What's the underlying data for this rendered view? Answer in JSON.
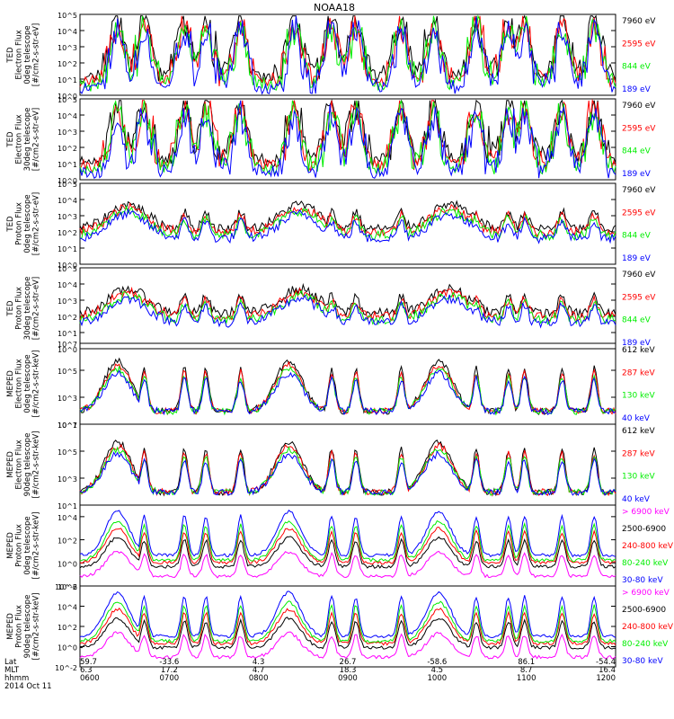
{
  "title": "NOAA18",
  "date": "2014 Oct 11",
  "colors": {
    "black": "#000000",
    "red": "#ff0000",
    "green": "#00ee00",
    "blue": "#0000ff",
    "magenta": "#ff00ff"
  },
  "footer": {
    "row_labels": [
      "Lat",
      "MLT",
      "hhmm"
    ],
    "columns": [
      {
        "lat": "59.7",
        "mlt": "6.3",
        "hhmm": "0600"
      },
      {
        "lat": "-33.6",
        "mlt": "17.2",
        "hhmm": "0700"
      },
      {
        "lat": "4.3",
        "mlt": "4.7",
        "hhmm": "0800"
      },
      {
        "lat": "26.7",
        "mlt": "18.3",
        "hhmm": "0900"
      },
      {
        "lat": "-58.6",
        "mlt": "4.5",
        "hhmm": "1000"
      },
      {
        "lat": "86.1",
        "mlt": "8.7",
        "hhmm": "1100"
      },
      {
        "lat": "-54.4",
        "mlt": "16.4",
        "hhmm": "1200"
      }
    ]
  },
  "chart_data": [
    {
      "type": "line",
      "instrument": "TED",
      "ylabel": [
        "TED",
        "Electron Flux",
        "0deg telescope",
        "[#/cm2-s-str-eV]"
      ],
      "ylim_exp": [
        0,
        5
      ],
      "yticks": [
        "10^0",
        "10^1",
        "10^2",
        "10^3",
        "10^4",
        "10^5"
      ],
      "xlim": [
        "0600",
        "1200"
      ],
      "legend": [
        {
          "label": "7960 eV",
          "color": "black"
        },
        {
          "label": "2595 eV",
          "color": "red"
        },
        {
          "label": "844 eV",
          "color": "green"
        },
        {
          "label": "189 eV",
          "color": "blue"
        }
      ],
      "series": [
        {
          "name": "7960 eV",
          "color": "black"
        },
        {
          "name": "2595 eV",
          "color": "red"
        },
        {
          "name": "844 eV",
          "color": "green"
        },
        {
          "name": "189 eV",
          "color": "blue"
        }
      ]
    },
    {
      "type": "line",
      "instrument": "TED",
      "ylabel": [
        "TED",
        "Electron Flux",
        "30deg telescope",
        "[#/cm2-s-str-eV]"
      ],
      "ylim_exp": [
        0,
        5
      ],
      "yticks": [
        "10^0",
        "10^1",
        "10^2",
        "10^3",
        "10^4",
        "10^5"
      ],
      "xlim": [
        "0600",
        "1200"
      ],
      "legend": [
        {
          "label": "7960 eV",
          "color": "black"
        },
        {
          "label": "2595 eV",
          "color": "red"
        },
        {
          "label": "844 eV",
          "color": "green"
        },
        {
          "label": "189 eV",
          "color": "blue"
        }
      ],
      "series": [
        {
          "name": "7960 eV",
          "color": "black"
        },
        {
          "name": "2595 eV",
          "color": "red"
        },
        {
          "name": "844 eV",
          "color": "green"
        },
        {
          "name": "189 eV",
          "color": "blue"
        }
      ]
    },
    {
      "type": "line",
      "instrument": "TED",
      "ylabel": [
        "TED",
        "Proton Flux",
        "0deg telescope",
        "[#/cm2-s-str-eV]"
      ],
      "ylim_exp": [
        0,
        5
      ],
      "yticks": [
        "10^0",
        "10^1",
        "10^2",
        "10^3",
        "10^4",
        "10^5"
      ],
      "xlim": [
        "0600",
        "1200"
      ],
      "legend": [
        {
          "label": "7960 eV",
          "color": "black"
        },
        {
          "label": "2595 eV",
          "color": "red"
        },
        {
          "label": "844 eV",
          "color": "green"
        },
        {
          "label": "189 eV",
          "color": "blue"
        }
      ],
      "series": [
        {
          "name": "7960 eV",
          "color": "black"
        },
        {
          "name": "2595 eV",
          "color": "red"
        },
        {
          "name": "844 eV",
          "color": "green"
        },
        {
          "name": "189 eV",
          "color": "blue"
        }
      ]
    },
    {
      "type": "line",
      "instrument": "TED",
      "ylabel": [
        "TED",
        "Proton Flux",
        "30deg telescope",
        "[#/cm2-s-str-eV]"
      ],
      "ylim_exp": [
        0,
        5
      ],
      "yticks": [
        "10^0",
        "10^1",
        "10^2",
        "10^3",
        "10^4",
        "10^5"
      ],
      "xlim": [
        "0600",
        "1200"
      ],
      "legend": [
        {
          "label": "7960 eV",
          "color": "black"
        },
        {
          "label": "2595 eV",
          "color": "red"
        },
        {
          "label": "844 eV",
          "color": "green"
        },
        {
          "label": "189 eV",
          "color": "blue"
        }
      ],
      "series": [
        {
          "name": "7960 eV",
          "color": "black"
        },
        {
          "name": "2595 eV",
          "color": "red"
        },
        {
          "name": "844 eV",
          "color": "green"
        },
        {
          "name": "189 eV",
          "color": "blue"
        }
      ]
    },
    {
      "type": "line",
      "instrument": "MEPED",
      "ylabel": [
        "MEPED",
        "Electron Flux",
        "0deg telescope",
        "[#/cm2-s-str-keV]"
      ],
      "ylim_exp": [
        1,
        7
      ],
      "yticks": [
        "10^1",
        "10^3",
        "10^5",
        "10^7"
      ],
      "xlim": [
        "0600",
        "1200"
      ],
      "legend": [
        {
          "label": "612 keV",
          "color": "black"
        },
        {
          "label": "287 keV",
          "color": "red"
        },
        {
          "label": "130 keV",
          "color": "green"
        },
        {
          "label": "40 keV",
          "color": "blue"
        }
      ],
      "series": [
        {
          "name": "612 keV",
          "color": "black"
        },
        {
          "name": "287 keV",
          "color": "red"
        },
        {
          "name": "130 keV",
          "color": "green"
        },
        {
          "name": "40 keV",
          "color": "blue"
        }
      ]
    },
    {
      "type": "line",
      "instrument": "MEPED",
      "ylabel": [
        "MEPED",
        "Electron Flux",
        "90deg telescope",
        "[#/cm2-s-str-keV]"
      ],
      "ylim_exp": [
        1,
        7
      ],
      "yticks": [
        "10^1",
        "10^3",
        "10^5",
        "10^7"
      ],
      "xlim": [
        "0600",
        "1200"
      ],
      "legend": [
        {
          "label": "612 keV",
          "color": "black"
        },
        {
          "label": "287 keV",
          "color": "red"
        },
        {
          "label": "130 keV",
          "color": "green"
        },
        {
          "label": "40 keV",
          "color": "blue"
        }
      ],
      "series": [
        {
          "name": "612 keV",
          "color": "black"
        },
        {
          "name": "287 keV",
          "color": "red"
        },
        {
          "name": "130 keV",
          "color": "green"
        },
        {
          "name": "40 keV",
          "color": "blue"
        }
      ]
    },
    {
      "type": "line",
      "instrument": "MEPED",
      "ylabel": [
        "MEPED",
        "Proton Flux",
        "0deg telescope",
        "[#/cm2-s-str-keV]"
      ],
      "ylim_exp": [
        -2,
        5
      ],
      "yticks": [
        "10^-2",
        "10^0",
        "10^2",
        "10^4"
      ],
      "xlim": [
        "0600",
        "1200"
      ],
      "legend": [
        {
          "label": "> 6900 keV",
          "color": "magenta"
        },
        {
          "label": "2500-6900",
          "color": "black"
        },
        {
          "label": "240-800 keV",
          "color": "red"
        },
        {
          "label": "80-240 keV",
          "color": "green"
        },
        {
          "label": "30-80 keV",
          "color": "blue"
        }
      ],
      "series": [
        {
          "name": "> 6900 keV",
          "color": "magenta"
        },
        {
          "name": "2500-6900",
          "color": "black"
        },
        {
          "name": "240-800 keV",
          "color": "red"
        },
        {
          "name": "80-240 keV",
          "color": "green"
        },
        {
          "name": "30-80 keV",
          "color": "blue"
        }
      ]
    },
    {
      "type": "line",
      "instrument": "MEPED",
      "ylabel": [
        "MEPED",
        "Proton Flux",
        "90deg telescope",
        "[#/cm2-s-str-keV]"
      ],
      "ylim_exp": [
        -2,
        6
      ],
      "yticks": [
        "10^-2",
        "10^0",
        "10^2",
        "10^4",
        "10^6"
      ],
      "xlim": [
        "0600",
        "1200"
      ],
      "legend": [
        {
          "label": "> 6900 keV",
          "color": "magenta"
        },
        {
          "label": "2500-6900",
          "color": "black"
        },
        {
          "label": "240-800 keV",
          "color": "red"
        },
        {
          "label": "80-240 keV",
          "color": "green"
        },
        {
          "label": "30-80 keV",
          "color": "blue"
        }
      ],
      "series": [
        {
          "name": "> 6900 keV",
          "color": "magenta"
        },
        {
          "name": "2500-6900",
          "color": "black"
        },
        {
          "name": "240-800 keV",
          "color": "red"
        },
        {
          "name": "80-240 keV",
          "color": "green"
        },
        {
          "name": "30-80 keV",
          "color": "blue"
        }
      ]
    }
  ]
}
